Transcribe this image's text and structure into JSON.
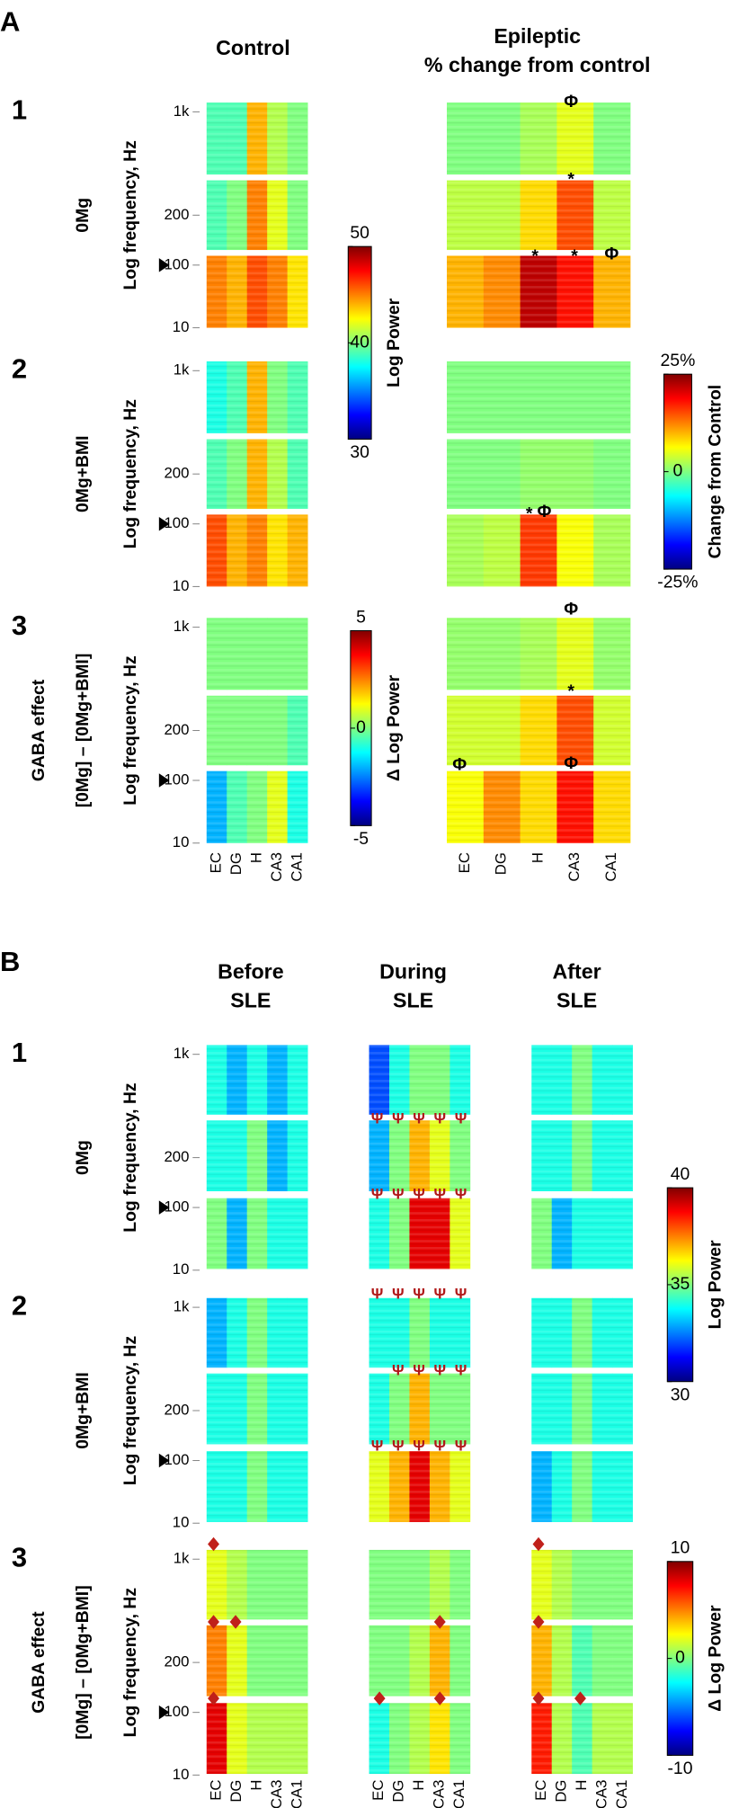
{
  "panel_a": {
    "label": "A",
    "columns": [
      [
        "Control"
      ],
      [
        "Epileptic",
        "% change from control"
      ]
    ],
    "xlabels": [
      "EC",
      "DG",
      "H",
      "CA3",
      "CA1"
    ],
    "rows": [
      {
        "number": "1",
        "condition": [
          "0Mg"
        ],
        "ylabel": "Log frequency, Hz",
        "yticks": [
          {
            "value": 1000,
            "label": "1k"
          },
          200,
          100,
          10
        ],
        "maps": [
          [
            [
              39,
              39,
              44,
              41,
              40
            ],
            [
              39,
              40,
              45,
              42,
              40
            ],
            [
              45,
              44,
              46,
              45,
              43
            ]
          ],
          [
            [
              0,
              0,
              2,
              5,
              0
            ],
            [
              3,
              3,
              8,
              15,
              3
            ],
            [
              10,
              12,
              22,
              18,
              10
            ]
          ]
        ]
      },
      {
        "number": "2",
        "condition": [
          "0Mg+BMI"
        ],
        "ylabel": "Log frequency, Hz",
        "yticks": [
          {
            "value": 1000,
            "label": "1k"
          },
          200,
          100,
          10
        ],
        "maps": [
          [
            [
              38,
              39,
              44,
              40,
              39
            ],
            [
              39,
              40,
              44,
              41,
              39
            ],
            [
              46,
              44,
              45,
              43,
              44
            ]
          ],
          [
            [
              0,
              0,
              0,
              0,
              0
            ],
            [
              0,
              0,
              1,
              1,
              0
            ],
            [
              2,
              3,
              16,
              6,
              2
            ]
          ]
        ]
      },
      {
        "number": "3",
        "condition": [
          "GABA effect",
          "[0Mg] – [0Mg+BMI]"
        ],
        "ylabel": "Log frequency, Hz",
        "yticks": [
          {
            "value": 1000,
            "label": "1k"
          },
          200,
          100,
          10
        ],
        "maps": [
          [
            [
              0,
              0,
              0,
              0,
              0
            ],
            [
              0,
              0,
              0,
              0,
              -0.5
            ],
            [
              -2,
              -0.5,
              0,
              1,
              -1
            ]
          ],
          [
            [
              1,
              1,
              2,
              5,
              1
            ],
            [
              4,
              4,
              8,
              15,
              4
            ],
            [
              6,
              12,
              8,
              18,
              8
            ]
          ]
        ]
      }
    ],
    "colorbars": [
      {
        "label": "Log Power",
        "ticks": [
          50,
          40,
          30
        ]
      },
      {
        "label": "Change from Control",
        "ticks": [
          {
            "value": 25,
            "label": "25%"
          },
          0,
          {
            "value": -25,
            "label": "-25%"
          }
        ]
      },
      {
        "label": "Δ Log Power",
        "ticks": [
          5,
          0,
          -5
        ]
      }
    ],
    "annotations": [
      "Φ",
      "*",
      "*",
      "*",
      "Φ",
      "*",
      "Φ",
      "Φ",
      "*",
      "Φ",
      "Φ"
    ]
  },
  "panel_b": {
    "label": "B",
    "columns": [
      [
        "Before",
        "SLE"
      ],
      [
        "During",
        "SLE"
      ],
      [
        "After",
        "SLE"
      ]
    ],
    "xlabels": [
      "EC",
      "DG",
      "H",
      "CA3",
      "CA1"
    ],
    "rows": [
      {
        "number": "1",
        "condition": [
          "0Mg"
        ],
        "ylabel": "Log frequency, Hz",
        "yticks": [
          {
            "value": 1000,
            "label": "1k"
          },
          200,
          100,
          10
        ],
        "maps": [
          [
            [
              34,
              33,
              34,
              33,
              34
            ],
            [
              34,
              34,
              35,
              33,
              34
            ],
            [
              35,
              33,
              35,
              34,
              34
            ]
          ],
          [
            [
              32,
              34,
              35,
              35,
              34
            ],
            [
              33,
              35,
              37,
              36,
              35
            ],
            [
              34,
              35,
              39,
              39,
              36
            ]
          ],
          [
            [
              34,
              34,
              35,
              34,
              34
            ],
            [
              34,
              34,
              35,
              34,
              34
            ],
            [
              35,
              33,
              34,
              34,
              34
            ]
          ]
        ]
      },
      {
        "number": "2",
        "condition": [
          "0Mg+BMI"
        ],
        "ylabel": "Log frequency, Hz",
        "yticks": [
          {
            "value": 1000,
            "label": "1k"
          },
          200,
          100,
          10
        ],
        "maps": [
          [
            [
              33,
              34,
              35,
              34,
              34
            ],
            [
              34,
              34,
              35,
              34,
              34
            ],
            [
              34,
              34,
              35,
              34,
              34
            ]
          ],
          [
            [
              34,
              34,
              35,
              34,
              34
            ],
            [
              34,
              35,
              37,
              35,
              35
            ],
            [
              36,
              37,
              39,
              37,
              36
            ]
          ],
          [
            [
              34,
              34,
              35,
              34,
              34
            ],
            [
              34,
              34,
              35,
              34,
              34
            ],
            [
              33,
              34,
              35,
              34,
              34
            ]
          ]
        ]
      },
      {
        "number": "3",
        "condition": [
          "GABA effect",
          "[0Mg] – [0Mg+BMI]"
        ],
        "ylabel": "Log frequency, Hz",
        "yticks": [
          {
            "value": 1000,
            "label": "1k"
          },
          200,
          100,
          10
        ],
        "maps": [
          [
            [
              2,
              1,
              0,
              0,
              0
            ],
            [
              5,
              2,
              0,
              0,
              0
            ],
            [
              8,
              2,
              1,
              1,
              1
            ]
          ],
          [
            [
              0,
              0,
              0,
              1,
              0
            ],
            [
              0,
              0,
              1,
              4,
              0
            ],
            [
              -2,
              0,
              1,
              3,
              0
            ]
          ],
          [
            [
              2,
              1,
              0,
              0,
              0
            ],
            [
              4,
              1,
              -1,
              0,
              0
            ],
            [
              7,
              1,
              -1,
              1,
              1
            ]
          ]
        ]
      }
    ],
    "colorbars": [
      {
        "label": "Log Power",
        "ticks": [
          40,
          35,
          30
        ]
      },
      {
        "label": "Δ Log Power",
        "ticks": [
          10,
          0,
          -10
        ]
      }
    ],
    "annotations": [
      "Ψ",
      "Ψ",
      "Ψ",
      "Ψ",
      "Ψ",
      "Ψ",
      "Ψ",
      "Ψ",
      "Ψ",
      "Ψ",
      "Ψ",
      "Ψ",
      "Ψ",
      "Ψ",
      "Ψ",
      "Ψ",
      "Ψ",
      "Ψ",
      "Ψ",
      "Ψ",
      "Ψ",
      "Ψ",
      "Ψ",
      "Ψ"
    ]
  }
}
